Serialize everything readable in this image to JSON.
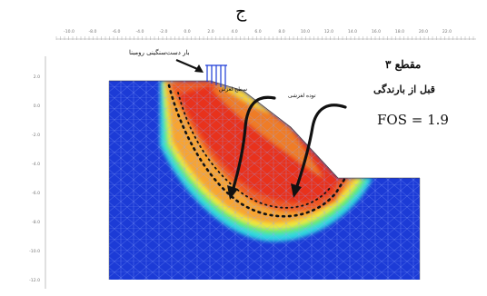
{
  "figure_letter": "ج",
  "annotations": {
    "section_title": "مقطع ۳",
    "stage_label": "قبل از بارندگی",
    "fos": "FOS = 1.9",
    "load_label": "بار دست‌سنگینی رومبنا",
    "slip_surface_label": "سطح لغزش",
    "sliding_mass_label": "توده لغزشی"
  },
  "axes": {
    "top_ticks": [
      "-10.0",
      "-8.0",
      "-6.0",
      "-4.0",
      "-2.0",
      "0.0",
      "2.0",
      "4.0",
      "6.0",
      "8.0",
      "10.0",
      "12.0",
      "14.0",
      "16.0",
      "18.0",
      "20.0",
      "22.0"
    ],
    "left_ticks": [
      "2.0",
      "0.0",
      "-2.0",
      "-4.0",
      "-6.0",
      "-8.0",
      "-10.0",
      "-12.0"
    ]
  },
  "colors": {
    "soil_blue": "#1c3bd6",
    "mesh_line": "#8fa8ff",
    "core_red": "#e8321c",
    "slip_dots": "#111111"
  }
}
